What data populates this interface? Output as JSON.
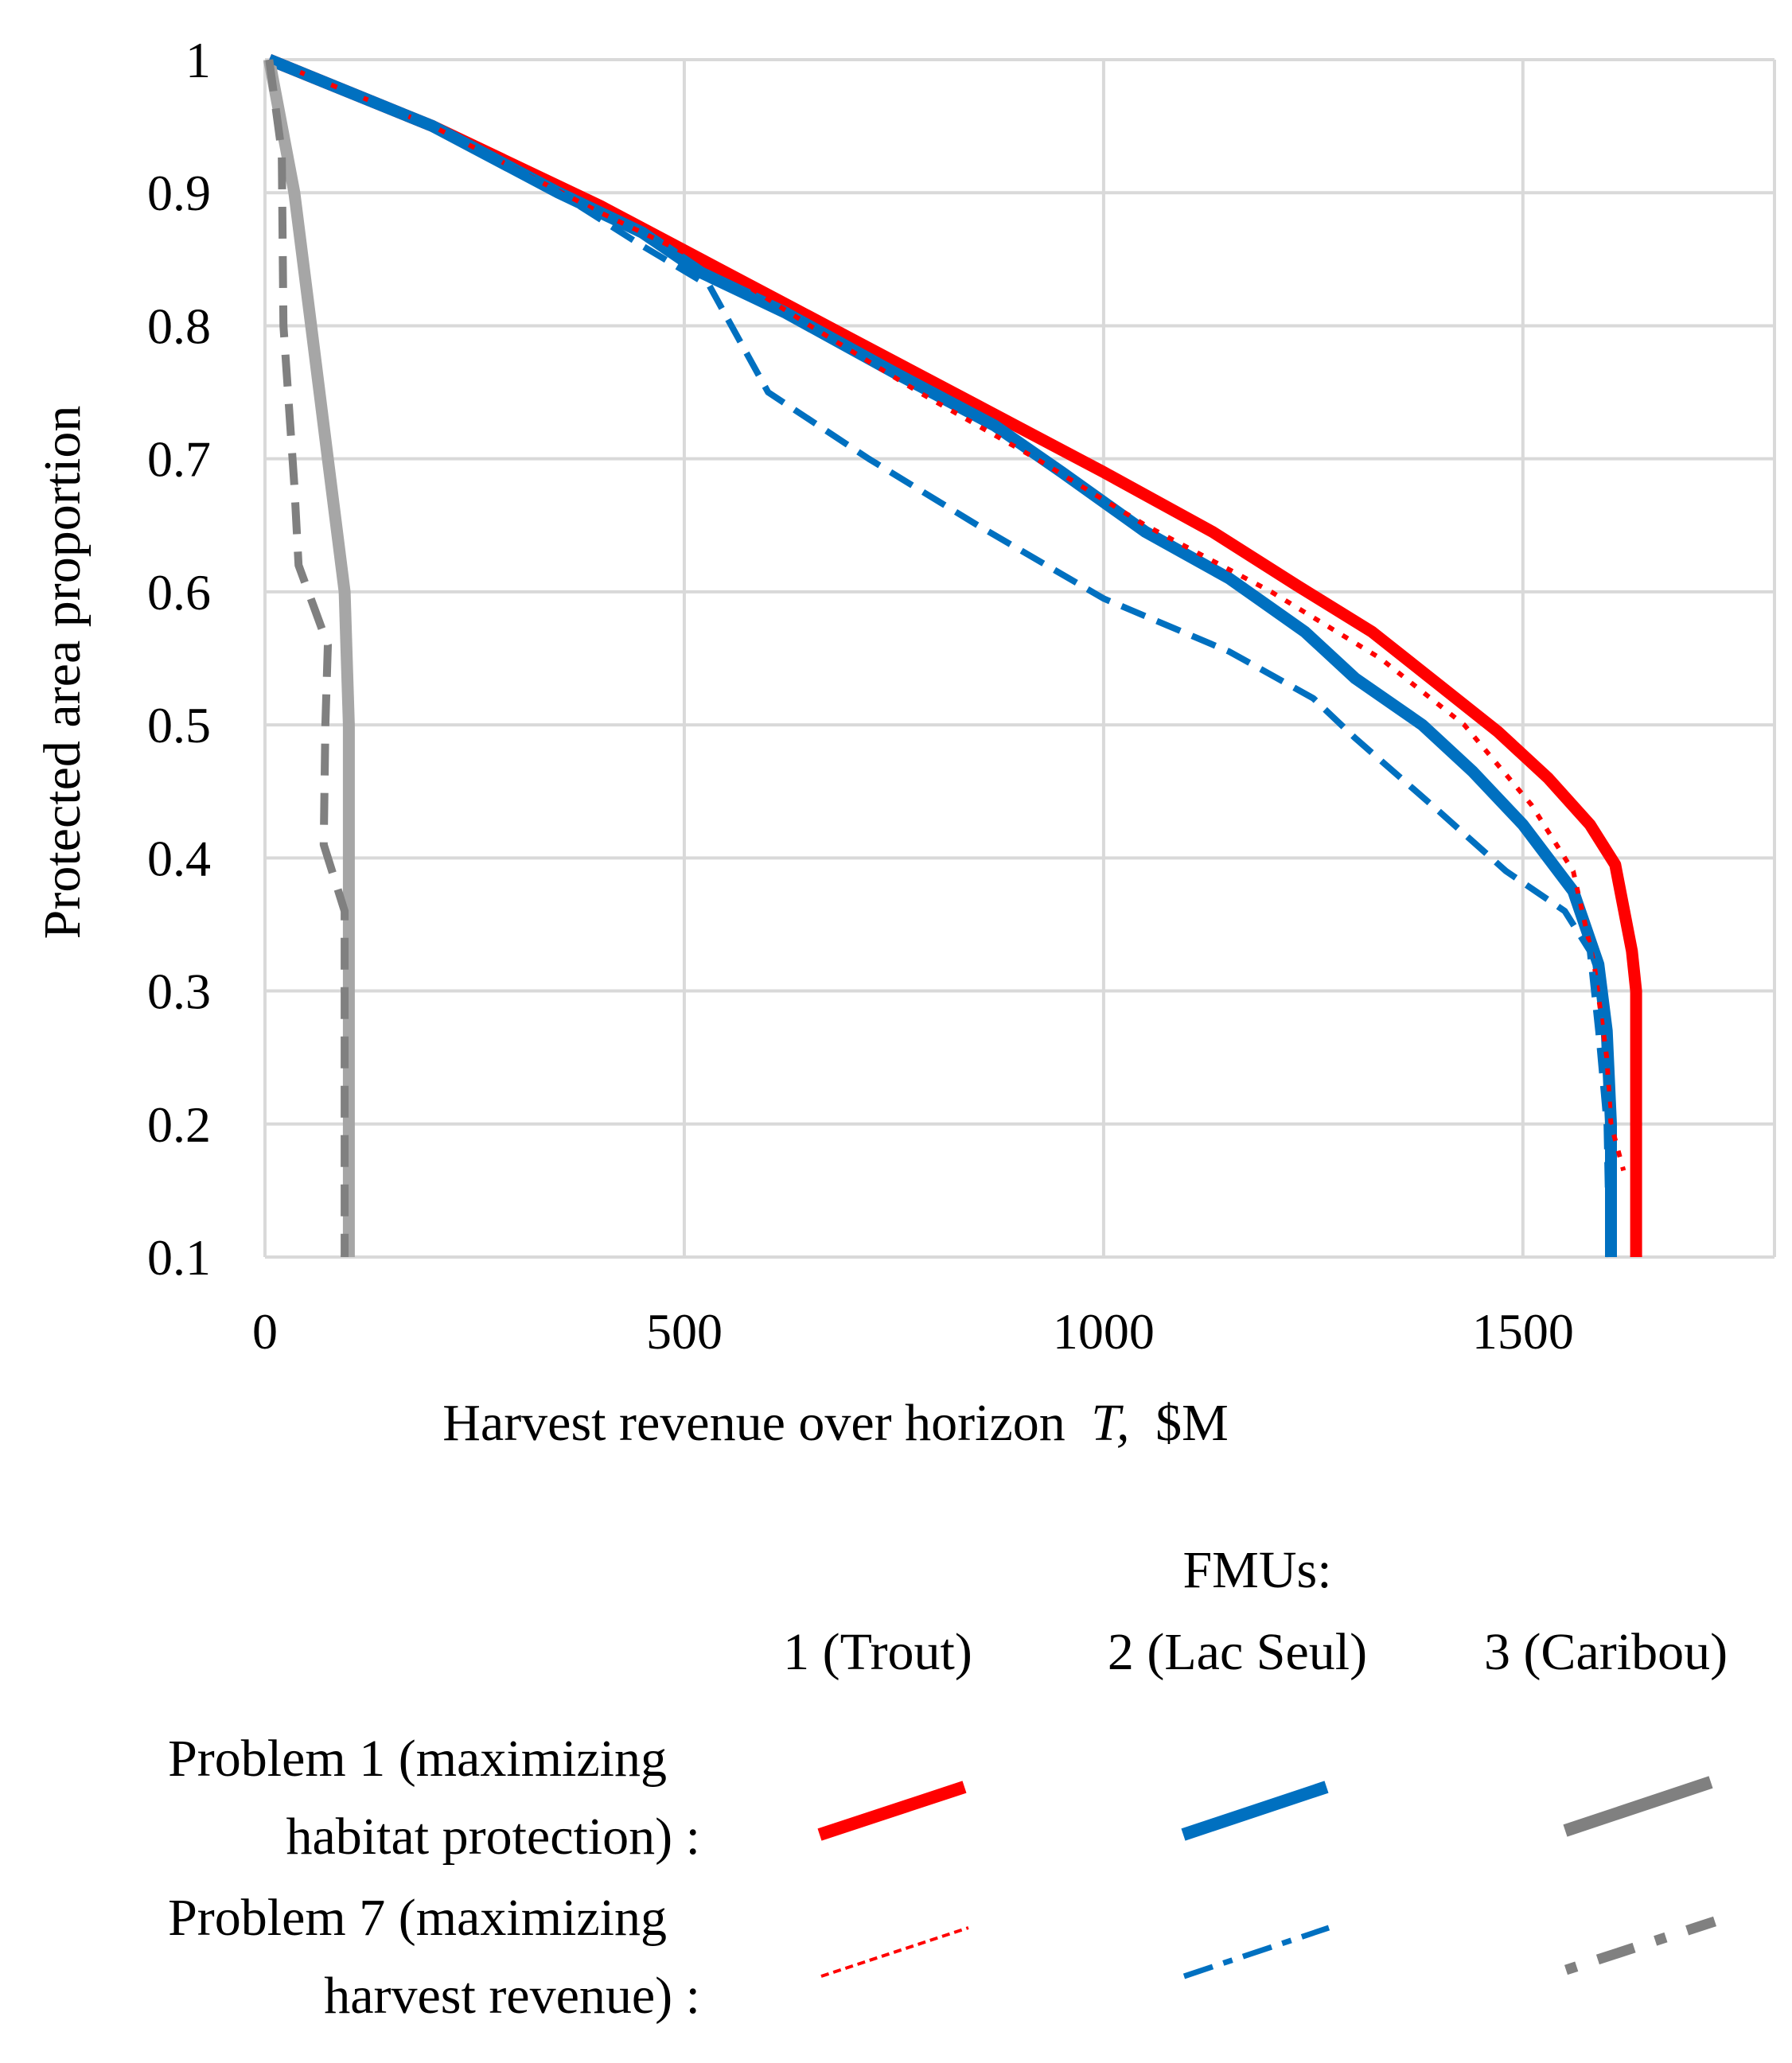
{
  "chart_data": {
    "type": "line",
    "xlabel": "Harvest revenue over horizon",
    "xlabel_italic": "T,",
    "xlabel_unit": "$M",
    "ylabel": "Protected area proportion",
    "xlim": [
      0,
      1800
    ],
    "ylim": [
      0.1,
      1.0
    ],
    "xticks": [
      0,
      500,
      1000,
      1500
    ],
    "yticks": [
      "1",
      "0.9",
      "0.8",
      "0.7",
      "0.6",
      "0.5",
      "0.4",
      "0.3",
      "0.2",
      "0.1"
    ],
    "grid": true,
    "series": [
      {
        "name": "Problem 1 - FMU 1 (Trout)",
        "color": "#ff0000",
        "style": "solid-thick",
        "points": [
          [
            5,
            1.0
          ],
          [
            200,
            0.95
          ],
          [
            400,
            0.89
          ],
          [
            550,
            0.84
          ],
          [
            700,
            0.79
          ],
          [
            850,
            0.74
          ],
          [
            1000,
            0.69
          ],
          [
            1130,
            0.645
          ],
          [
            1230,
            0.605
          ],
          [
            1320,
            0.57
          ],
          [
            1400,
            0.53
          ],
          [
            1470,
            0.495
          ],
          [
            1530,
            0.46
          ],
          [
            1580,
            0.425
          ],
          [
            1610,
            0.395
          ],
          [
            1630,
            0.33
          ],
          [
            1635,
            0.3
          ],
          [
            1635,
            0.2
          ],
          [
            1635,
            0.1
          ]
        ]
      },
      {
        "name": "Problem 1 - FMU 2 (Lac Seul)",
        "color": "#0070c0",
        "style": "solid-thick",
        "points": [
          [
            5,
            1.0
          ],
          [
            200,
            0.95
          ],
          [
            350,
            0.9
          ],
          [
            450,
            0.87
          ],
          [
            520,
            0.84
          ],
          [
            620,
            0.81
          ],
          [
            750,
            0.765
          ],
          [
            870,
            0.725
          ],
          [
            950,
            0.69
          ],
          [
            1050,
            0.645
          ],
          [
            1150,
            0.61
          ],
          [
            1240,
            0.57
          ],
          [
            1300,
            0.535
          ],
          [
            1380,
            0.5
          ],
          [
            1440,
            0.465
          ],
          [
            1500,
            0.425
          ],
          [
            1560,
            0.375
          ],
          [
            1590,
            0.32
          ],
          [
            1600,
            0.27
          ],
          [
            1605,
            0.2
          ],
          [
            1605,
            0.1
          ]
        ]
      },
      {
        "name": "Problem 1 - FMU 3 (Caribou)",
        "color": "#a6a6a6",
        "style": "solid-thick",
        "points": [
          [
            5,
            1.0
          ],
          [
            35,
            0.9
          ],
          [
            55,
            0.8
          ],
          [
            75,
            0.7
          ],
          [
            95,
            0.6
          ],
          [
            100,
            0.5
          ],
          [
            100,
            0.4
          ],
          [
            100,
            0.3
          ],
          [
            100,
            0.2
          ],
          [
            100,
            0.1
          ]
        ]
      },
      {
        "name": "Problem 7 - FMU 1 (Trout)",
        "color": "#ff0000",
        "style": "dotted",
        "points": [
          [
            5,
            1.0
          ],
          [
            200,
            0.95
          ],
          [
            400,
            0.885
          ],
          [
            550,
            0.84
          ],
          [
            650,
            0.8
          ],
          [
            780,
            0.75
          ],
          [
            920,
            0.7
          ],
          [
            1050,
            0.65
          ],
          [
            1200,
            0.6
          ],
          [
            1330,
            0.55
          ],
          [
            1430,
            0.5
          ],
          [
            1510,
            0.44
          ],
          [
            1560,
            0.39
          ],
          [
            1585,
            0.32
          ],
          [
            1600,
            0.25
          ],
          [
            1605,
            0.2
          ],
          [
            1620,
            0.165
          ]
        ]
      },
      {
        "name": "Problem 7 - FMU 2 (Lac Seul)",
        "color": "#0070c0",
        "style": "dashed",
        "points": [
          [
            5,
            1.0
          ],
          [
            200,
            0.95
          ],
          [
            350,
            0.9
          ],
          [
            450,
            0.86
          ],
          [
            530,
            0.83
          ],
          [
            600,
            0.75
          ],
          [
            720,
            0.7
          ],
          [
            850,
            0.65
          ],
          [
            1000,
            0.595
          ],
          [
            1150,
            0.555
          ],
          [
            1250,
            0.52
          ],
          [
            1300,
            0.49
          ],
          [
            1400,
            0.435
          ],
          [
            1480,
            0.39
          ],
          [
            1550,
            0.36
          ],
          [
            1580,
            0.33
          ],
          [
            1590,
            0.27
          ],
          [
            1600,
            0.2
          ],
          [
            1603,
            0.1
          ]
        ]
      },
      {
        "name": "Problem 7 - FMU 3 (Caribou)",
        "color": "#808080",
        "style": "dashed-thick",
        "points": [
          [
            5,
            1.0
          ],
          [
            20,
            0.93
          ],
          [
            22,
            0.8
          ],
          [
            35,
            0.68
          ],
          [
            40,
            0.62
          ],
          [
            75,
            0.56
          ],
          [
            72,
            0.5
          ],
          [
            70,
            0.41
          ],
          [
            95,
            0.36
          ],
          [
            95,
            0.3
          ],
          [
            95,
            0.2
          ],
          [
            95,
            0.1
          ]
        ]
      }
    ],
    "legend": {
      "header": "FMUs:",
      "columns": [
        "1 (Trout)",
        "2 (Lac Seul)",
        "3 (Caribou)"
      ],
      "rows": [
        {
          "line1": "Problem 1 (maximizing",
          "line2": "habitat protection) :"
        },
        {
          "line1": "Problem 7 (maximizing",
          "line2": "harvest revenue) :"
        }
      ]
    }
  }
}
